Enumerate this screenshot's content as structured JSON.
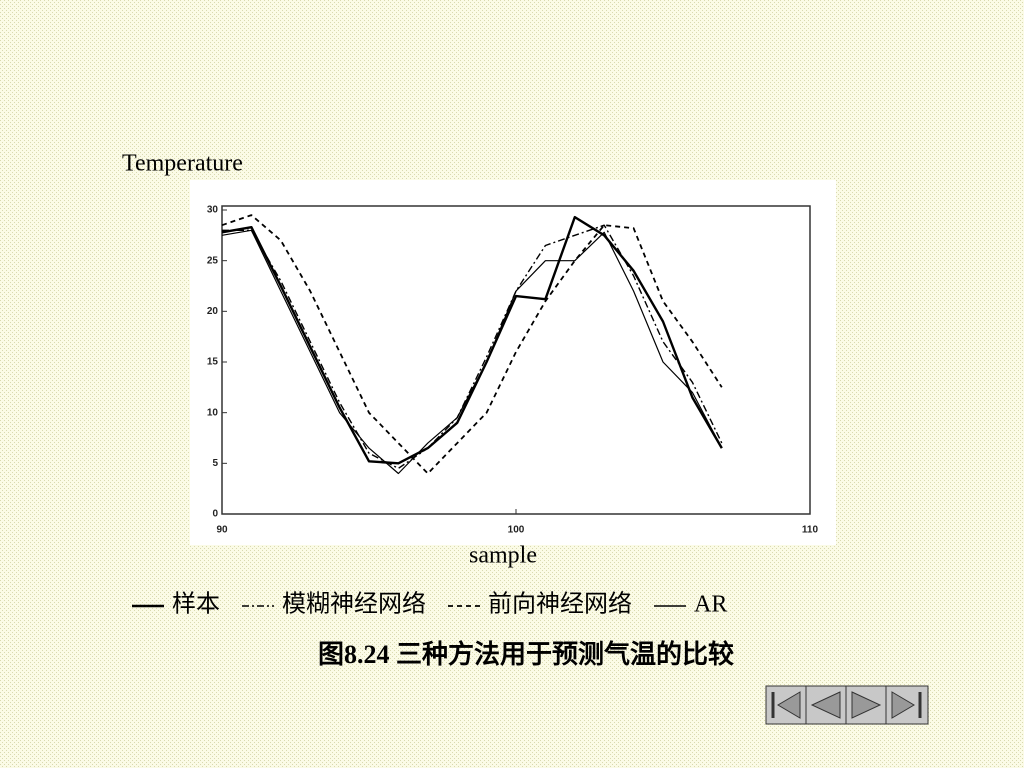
{
  "chart_data": {
    "type": "line",
    "title": "Temperature",
    "x_label": "sample",
    "caption": "图8.24 三种方法用于预测气温的比较",
    "x": [
      90,
      91,
      92,
      93,
      94,
      95,
      96,
      97,
      98,
      99,
      100,
      101,
      102,
      103,
      104,
      105,
      106,
      107
    ],
    "series": [
      {
        "name": "样本",
        "color": "#000000",
        "style": "solid",
        "width": 2.4,
        "values": [
          27.8,
          28.3,
          22.5,
          16.5,
          10.5,
          5.2,
          5.0,
          6.5,
          9,
          15,
          21.5,
          21.2,
          29.3,
          27.5,
          24,
          19,
          11.5,
          6.5
        ]
      },
      {
        "name": "模糊神经网络",
        "color": "#000000",
        "style": "dashdot",
        "width": 1.4,
        "values": [
          28,
          28,
          23,
          17,
          11,
          6,
          4.5,
          6.5,
          9.5,
          15.5,
          22,
          26.5,
          27.5,
          28.5,
          23.5,
          17,
          13,
          7
        ]
      },
      {
        "name": "前向神经网络",
        "color": "#000000",
        "style": "dotted",
        "width": 1.8,
        "values": [
          28.5,
          29.5,
          27,
          22,
          16,
          10,
          7,
          4,
          7,
          10,
          16,
          21,
          25,
          28.5,
          28.2,
          21,
          17,
          12.5
        ]
      },
      {
        "name": "AR",
        "color": "#000000",
        "style": "solid",
        "width": 1.2,
        "values": [
          27.5,
          28,
          22,
          16,
          10,
          6.5,
          4,
          7,
          9.5,
          15,
          22,
          25,
          25,
          27.8,
          22,
          15,
          12,
          6.5
        ]
      }
    ],
    "xlim": [
      90,
      110
    ],
    "xticks": [
      90,
      100,
      110
    ],
    "ylim": [
      0,
      30
    ],
    "yticks": [
      0,
      5,
      10,
      15,
      20,
      25,
      30
    ]
  }
}
